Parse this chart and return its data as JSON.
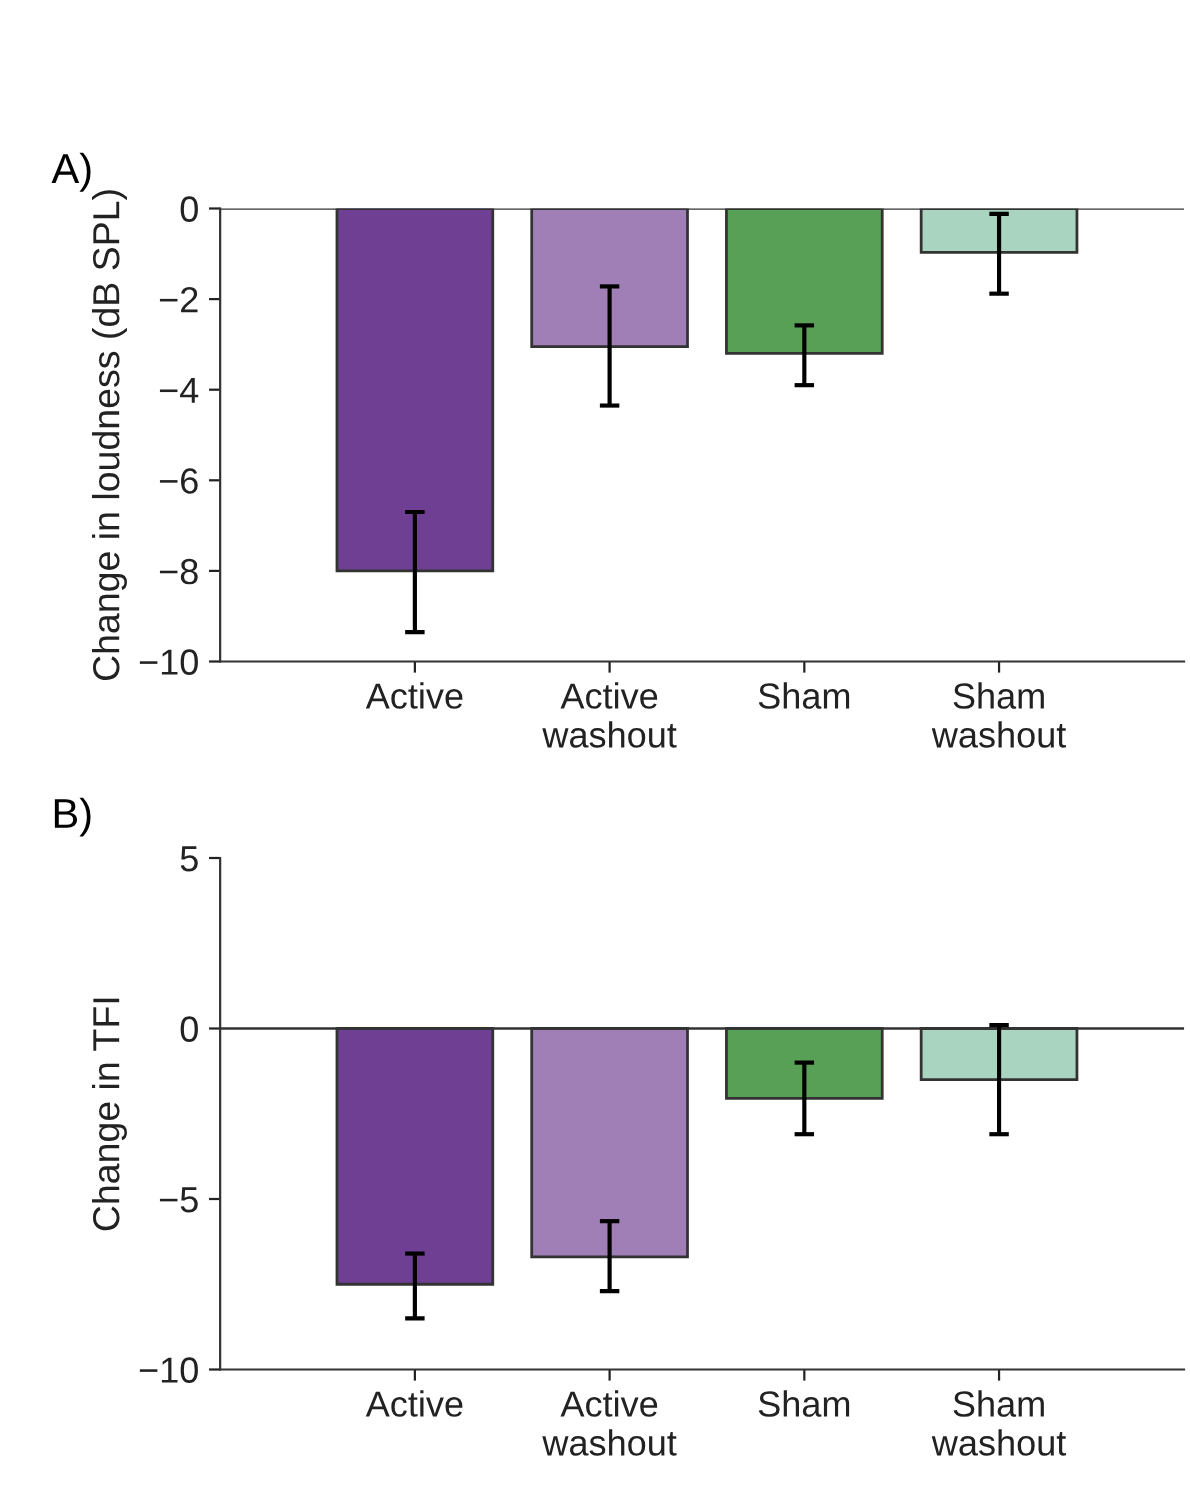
{
  "chart_data": [
    {
      "type": "bar",
      "title": "A)",
      "ylabel": "Change in loudness (dB SPL)",
      "categories": [
        "Active",
        "Active\nwashout",
        "Sham",
        "Sham\nwashout"
      ],
      "values": [
        -8.0,
        -3.05,
        -3.2,
        -0.97
      ],
      "errors": [
        [
          -9.35,
          -6.7
        ],
        [
          -4.35,
          -1.72
        ],
        [
          -3.9,
          -2.58
        ],
        [
          -1.88,
          -0.12
        ]
      ],
      "colors": [
        "#6f3f93",
        "#a07fb6",
        "#57a055",
        "#a9d4bf"
      ],
      "ylim": [
        -10,
        0
      ],
      "yticks": [
        -10,
        -8,
        -6,
        -4,
        -2,
        0
      ],
      "ref_lines": [
        {
          "axis": "y",
          "value": 0
        }
      ]
    },
    {
      "type": "bar",
      "title": "B)",
      "ylabel": "Change in TFI",
      "categories": [
        "Active",
        "Active\nwashout",
        "Sham",
        "Sham\nwashout"
      ],
      "values": [
        -7.5,
        -6.7,
        -2.05,
        -1.5
      ],
      "errors": [
        [
          -8.5,
          -6.6
        ],
        [
          -7.7,
          -5.65
        ],
        [
          -3.1,
          -1.0
        ],
        [
          -3.1,
          0.1
        ]
      ],
      "colors": [
        "#6f3f93",
        "#a07fb6",
        "#57a055",
        "#a9d4bf"
      ],
      "ylim": [
        -10,
        5
      ],
      "yticks": [
        -10,
        -5,
        0,
        5
      ],
      "ref_lines": [
        {
          "axis": "y",
          "value": 0
        }
      ]
    }
  ]
}
